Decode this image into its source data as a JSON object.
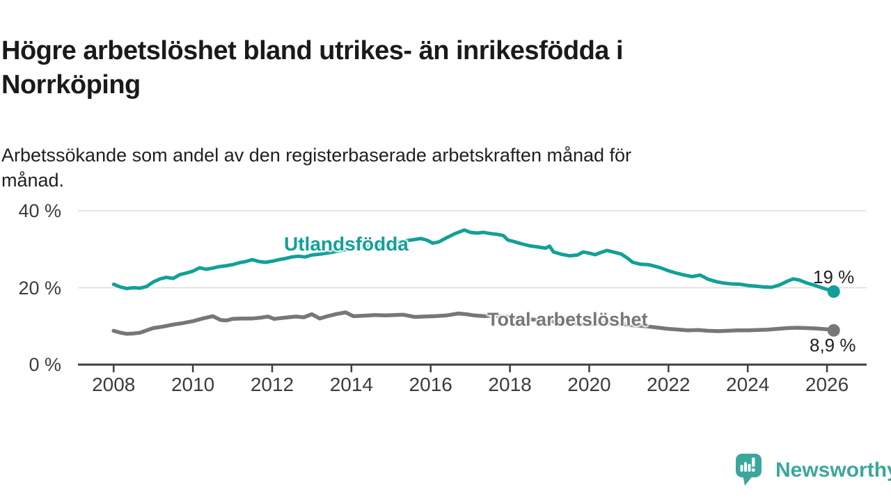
{
  "header": {
    "title_line1": "Högre arbetslöshet bland utrikes- än inrikesfödda i",
    "title_line2": "Norrköping",
    "subtitle_line1": "Arbetssökande som andel av den registerbaserade arbetskraften månad för",
    "subtitle_line2": "månad."
  },
  "chart_data": {
    "type": "line",
    "x_unit": "year (monthly data)",
    "xlim": [
      2007.1,
      2027.0
    ],
    "ylim": [
      0,
      40
    ],
    "grid": "horizontal",
    "yticks": [
      {
        "value": 0,
        "label": "0 %"
      },
      {
        "value": 20,
        "label": "20 %"
      },
      {
        "value": 40,
        "label": "40 %"
      }
    ],
    "xticks": [
      {
        "value": 2008,
        "label": "2008"
      },
      {
        "value": 2010,
        "label": "2010"
      },
      {
        "value": 2012,
        "label": "2012"
      },
      {
        "value": 2014,
        "label": "2014"
      },
      {
        "value": 2016,
        "label": "2016"
      },
      {
        "value": 2018,
        "label": "2018"
      },
      {
        "value": 2020,
        "label": "2020"
      },
      {
        "value": 2022,
        "label": "2022"
      },
      {
        "value": 2024,
        "label": "2024"
      },
      {
        "value": 2026,
        "label": "2026"
      }
    ],
    "series": [
      {
        "name": "Utlandsfödda",
        "color": "#12a098",
        "width": 5,
        "end_label": "19 %",
        "end_value": 19,
        "points": [
          [
            2008.0,
            20.9
          ],
          [
            2008.17,
            20.2
          ],
          [
            2008.33,
            19.8
          ],
          [
            2008.5,
            20.0
          ],
          [
            2008.67,
            19.9
          ],
          [
            2008.83,
            20.3
          ],
          [
            2009.0,
            21.5
          ],
          [
            2009.17,
            22.3
          ],
          [
            2009.33,
            22.7
          ],
          [
            2009.5,
            22.4
          ],
          [
            2009.67,
            23.4
          ],
          [
            2009.83,
            23.8
          ],
          [
            2010.0,
            24.3
          ],
          [
            2010.17,
            25.2
          ],
          [
            2010.33,
            24.8
          ],
          [
            2010.5,
            25.1
          ],
          [
            2010.67,
            25.5
          ],
          [
            2010.83,
            25.7
          ],
          [
            2011.0,
            26.0
          ],
          [
            2011.17,
            26.5
          ],
          [
            2011.33,
            26.8
          ],
          [
            2011.5,
            27.3
          ],
          [
            2011.67,
            26.8
          ],
          [
            2011.83,
            26.6
          ],
          [
            2012.0,
            26.9
          ],
          [
            2012.17,
            27.3
          ],
          [
            2012.33,
            27.6
          ],
          [
            2012.5,
            28.0
          ],
          [
            2012.67,
            28.2
          ],
          [
            2012.83,
            28.0
          ],
          [
            2013.0,
            28.5
          ],
          [
            2013.25,
            28.8
          ],
          [
            2013.5,
            29.2
          ],
          [
            2013.75,
            29.7
          ],
          [
            2014.0,
            30.1
          ],
          [
            2014.25,
            30.5
          ],
          [
            2014.5,
            30.9
          ],
          [
            2014.75,
            31.2
          ],
          [
            2015.0,
            31.6
          ],
          [
            2015.25,
            32.0
          ],
          [
            2015.5,
            32.4
          ],
          [
            2015.75,
            32.8
          ],
          [
            2015.9,
            32.4
          ],
          [
            2016.05,
            31.6
          ],
          [
            2016.2,
            31.9
          ],
          [
            2016.4,
            33.0
          ],
          [
            2016.6,
            34.0
          ],
          [
            2016.85,
            35.0
          ],
          [
            2017.0,
            34.4
          ],
          [
            2017.17,
            34.2
          ],
          [
            2017.33,
            34.4
          ],
          [
            2017.5,
            34.1
          ],
          [
            2017.67,
            33.9
          ],
          [
            2017.83,
            33.6
          ],
          [
            2017.95,
            32.4
          ],
          [
            2018.1,
            32.0
          ],
          [
            2018.3,
            31.4
          ],
          [
            2018.5,
            30.9
          ],
          [
            2018.7,
            30.6
          ],
          [
            2018.9,
            30.3
          ],
          [
            2019.0,
            30.8
          ],
          [
            2019.1,
            29.3
          ],
          [
            2019.3,
            28.7
          ],
          [
            2019.5,
            28.3
          ],
          [
            2019.7,
            28.5
          ],
          [
            2019.85,
            29.3
          ],
          [
            2020.0,
            29.0
          ],
          [
            2020.15,
            28.6
          ],
          [
            2020.3,
            29.2
          ],
          [
            2020.45,
            29.7
          ],
          [
            2020.6,
            29.3
          ],
          [
            2020.8,
            28.8
          ],
          [
            2020.95,
            27.8
          ],
          [
            2021.1,
            26.6
          ],
          [
            2021.3,
            26.1
          ],
          [
            2021.5,
            26.0
          ],
          [
            2021.65,
            25.6
          ],
          [
            2021.8,
            25.2
          ],
          [
            2022.0,
            24.4
          ],
          [
            2022.2,
            23.8
          ],
          [
            2022.4,
            23.3
          ],
          [
            2022.6,
            22.9
          ],
          [
            2022.8,
            23.3
          ],
          [
            2023.0,
            22.2
          ],
          [
            2023.2,
            21.6
          ],
          [
            2023.4,
            21.2
          ],
          [
            2023.6,
            21.0
          ],
          [
            2023.8,
            20.9
          ],
          [
            2024.0,
            20.6
          ],
          [
            2024.2,
            20.4
          ],
          [
            2024.4,
            20.2
          ],
          [
            2024.6,
            20.1
          ],
          [
            2024.8,
            20.7
          ],
          [
            2025.0,
            21.7
          ],
          [
            2025.15,
            22.3
          ],
          [
            2025.3,
            22.0
          ],
          [
            2025.5,
            21.2
          ],
          [
            2025.7,
            20.6
          ],
          [
            2025.9,
            19.9
          ],
          [
            2026.05,
            19.4
          ],
          [
            2026.17,
            19.0
          ]
        ]
      },
      {
        "name": "Total arbetslöshet",
        "color": "#76767b",
        "width": 5.5,
        "end_label": "8,9 %",
        "end_value": 8.9,
        "points": [
          [
            2008.0,
            8.8
          ],
          [
            2008.17,
            8.3
          ],
          [
            2008.33,
            8.0
          ],
          [
            2008.5,
            8.1
          ],
          [
            2008.67,
            8.3
          ],
          [
            2008.83,
            8.9
          ],
          [
            2009.0,
            9.5
          ],
          [
            2009.25,
            9.9
          ],
          [
            2009.5,
            10.4
          ],
          [
            2009.75,
            10.8
          ],
          [
            2010.0,
            11.3
          ],
          [
            2010.25,
            12.0
          ],
          [
            2010.5,
            12.6
          ],
          [
            2010.7,
            11.6
          ],
          [
            2010.85,
            11.5
          ],
          [
            2011.0,
            11.9
          ],
          [
            2011.25,
            12.0
          ],
          [
            2011.5,
            12.0
          ],
          [
            2011.7,
            12.2
          ],
          [
            2011.9,
            12.5
          ],
          [
            2012.05,
            11.9
          ],
          [
            2012.3,
            12.2
          ],
          [
            2012.6,
            12.5
          ],
          [
            2012.8,
            12.3
          ],
          [
            2013.0,
            13.1
          ],
          [
            2013.2,
            12.0
          ],
          [
            2013.4,
            12.6
          ],
          [
            2013.6,
            13.1
          ],
          [
            2013.85,
            13.6
          ],
          [
            2014.05,
            12.6
          ],
          [
            2014.3,
            12.7
          ],
          [
            2014.6,
            12.9
          ],
          [
            2014.85,
            12.8
          ],
          [
            2015.1,
            12.9
          ],
          [
            2015.3,
            13.0
          ],
          [
            2015.6,
            12.4
          ],
          [
            2015.85,
            12.5
          ],
          [
            2016.1,
            12.6
          ],
          [
            2016.4,
            12.8
          ],
          [
            2016.7,
            13.3
          ],
          [
            2016.9,
            13.1
          ],
          [
            2017.1,
            12.8
          ],
          [
            2017.35,
            12.6
          ],
          [
            2017.6,
            12.7
          ],
          [
            2018.0,
            12.4
          ],
          [
            2018.5,
            11.8
          ],
          [
            2019.0,
            11.3
          ],
          [
            2019.5,
            10.8
          ],
          [
            2020.0,
            10.5
          ],
          [
            2020.4,
            10.9
          ],
          [
            2020.8,
            10.6
          ],
          [
            2021.0,
            10.3
          ],
          [
            2021.5,
            9.9
          ],
          [
            2022.0,
            9.3
          ],
          [
            2022.5,
            8.9
          ],
          [
            2022.75,
            9.0
          ],
          [
            2023.0,
            8.8
          ],
          [
            2023.25,
            8.7
          ],
          [
            2023.5,
            8.8
          ],
          [
            2023.75,
            8.9
          ],
          [
            2024.0,
            8.9
          ],
          [
            2024.25,
            9.0
          ],
          [
            2024.5,
            9.1
          ],
          [
            2024.75,
            9.3
          ],
          [
            2025.0,
            9.5
          ],
          [
            2025.25,
            9.6
          ],
          [
            2025.5,
            9.5
          ],
          [
            2025.75,
            9.4
          ],
          [
            2026.0,
            9.2
          ],
          [
            2026.17,
            8.9
          ]
        ]
      }
    ]
  },
  "branding": {
    "logo_text": "Newsworthy",
    "logo_color": "#3ba79c",
    "icon": "newsworthy-speech-bubble-bar-chart-icon"
  }
}
